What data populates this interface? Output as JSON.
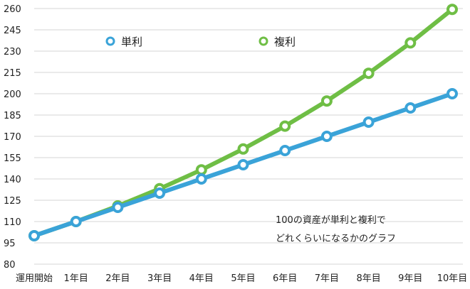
{
  "chart_data": {
    "type": "line",
    "categories": [
      "運用開始",
      "1年目",
      "2年目",
      "3年目",
      "4年目",
      "5年目",
      "6年目",
      "7年目",
      "8年目",
      "9年目",
      "10年目"
    ],
    "series": [
      {
        "name": "単利",
        "color": "#3aa3d8",
        "values": [
          100,
          110,
          120,
          130,
          140,
          150,
          160,
          170,
          180,
          190,
          200
        ]
      },
      {
        "name": "複利",
        "color": "#6fbe45",
        "values": [
          100,
          110,
          121,
          133.1,
          146.4,
          161.1,
          177.2,
          194.9,
          214.4,
          235.8,
          259.4
        ]
      }
    ],
    "ylim": [
      80,
      265
    ],
    "yticks": [
      80,
      95,
      110,
      125,
      140,
      155,
      170,
      185,
      200,
      215,
      230,
      245,
      260
    ],
    "grid": true,
    "legend": "top",
    "annotation": [
      "100の資産が単利と複利で",
      "どれくらいになるかのグラフ"
    ]
  }
}
